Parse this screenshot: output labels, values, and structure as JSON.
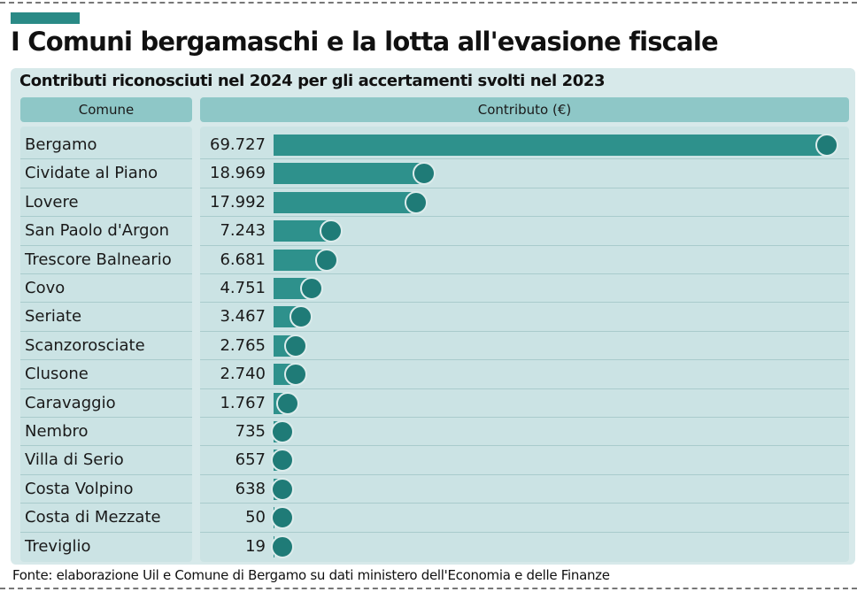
{
  "title": "I Comuni bergamaschi e la lotta all'evasione fiscale",
  "subtitle": "Contributi riconosciuti nel 2024 per gli accertamenti svolti nel 2023",
  "source": "Fonte: elaborazione Uil e Comune di Bergamo su dati ministero dell'Economia e delle Finanze",
  "colors": {
    "accent": "#2a8a86",
    "bar": "#2e918c",
    "knob": "#1f7b77",
    "header": "#8ec7c7",
    "panel": "#d7e9ea"
  },
  "chart_data": {
    "type": "bar",
    "orientation": "horizontal",
    "columns": [
      "Comune",
      "Contributo (€)"
    ],
    "categories": [
      "Bergamo",
      "Cividate al Piano",
      "Lovere",
      "San Paolo d'Argon",
      "Trescore Balneario",
      "Covo",
      "Seriate",
      "Scanzorosciate",
      "Clusone",
      "Caravaggio",
      "Nembro",
      "Villa di Serio",
      "Costa Volpino",
      "Costa di Mezzate",
      "Treviglio"
    ],
    "labels": [
      "69.727",
      "18.969",
      "17.992",
      "7.243",
      "6.681",
      "4.751",
      "3.467",
      "2.765",
      "2.740",
      "1.767",
      "735",
      "657",
      "638",
      "50",
      "19"
    ],
    "values": [
      69727,
      18969,
      17992,
      7243,
      6681,
      4751,
      3467,
      2765,
      2740,
      1767,
      735,
      657,
      638,
      50,
      19
    ],
    "grid": false,
    "legend": "none"
  }
}
